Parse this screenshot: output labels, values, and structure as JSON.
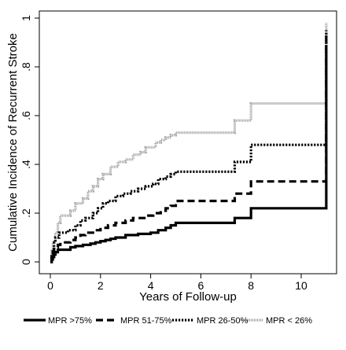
{
  "chart_data": {
    "type": "line",
    "xlabel": "Years of Follow-up",
    "ylabel": "Cumulative Incidence of Recurrent Stroke",
    "xlim": [
      0,
      11.5
    ],
    "ylim": [
      0,
      1.0
    ],
    "x_ticks": [
      {
        "value": 0,
        "label": "0"
      },
      {
        "value": 2,
        "label": "2"
      },
      {
        "value": 4,
        "label": "4"
      },
      {
        "value": 6,
        "label": "6"
      },
      {
        "value": 8,
        "label": "8"
      },
      {
        "value": 10,
        "label": "10"
      }
    ],
    "y_ticks": [
      {
        "value": 0,
        "label": "0"
      },
      {
        "value": 0.2,
        "label": ".2"
      },
      {
        "value": 0.4,
        "label": ".4"
      },
      {
        "value": 0.6,
        "label": ".6"
      },
      {
        "value": 0.8,
        "label": ".8"
      },
      {
        "value": 1.0,
        "label": "1"
      }
    ],
    "grid": false,
    "legend_position": "bottom",
    "series": [
      {
        "name": "MPR >75%",
        "line_style": "solid",
        "color": "#000000",
        "points": [
          [
            0,
            0
          ],
          [
            0.05,
            0.01
          ],
          [
            0.1,
            0.02
          ],
          [
            0.15,
            0.03
          ],
          [
            0.2,
            0.04
          ],
          [
            0.3,
            0.05
          ],
          [
            0.8,
            0.06
          ],
          [
            1.0,
            0.065
          ],
          [
            1.3,
            0.07
          ],
          [
            1.6,
            0.075
          ],
          [
            1.8,
            0.08
          ],
          [
            2.0,
            0.085
          ],
          [
            2.2,
            0.09
          ],
          [
            2.4,
            0.095
          ],
          [
            2.6,
            0.1
          ],
          [
            3.0,
            0.11
          ],
          [
            3.5,
            0.115
          ],
          [
            4.0,
            0.12
          ],
          [
            4.3,
            0.13
          ],
          [
            4.6,
            0.14
          ],
          [
            4.8,
            0.15
          ],
          [
            5.0,
            0.16
          ],
          [
            7.35,
            0.18
          ],
          [
            8.0,
            0.22
          ],
          [
            11.0,
            0.22
          ],
          [
            11.0,
            0.89
          ]
        ]
      },
      {
        "name": "MPR 51-75%",
        "line_style": "dashed",
        "color": "#000000",
        "points": [
          [
            0,
            0
          ],
          [
            0.05,
            0.02
          ],
          [
            0.1,
            0.04
          ],
          [
            0.15,
            0.06
          ],
          [
            0.3,
            0.07
          ],
          [
            0.4,
            0.08
          ],
          [
            0.8,
            0.09
          ],
          [
            1.0,
            0.1
          ],
          [
            1.2,
            0.11
          ],
          [
            1.4,
            0.12
          ],
          [
            1.7,
            0.13
          ],
          [
            2.0,
            0.14
          ],
          [
            2.3,
            0.15
          ],
          [
            2.6,
            0.16
          ],
          [
            3.0,
            0.17
          ],
          [
            3.3,
            0.18
          ],
          [
            3.8,
            0.19
          ],
          [
            4.1,
            0.2
          ],
          [
            4.4,
            0.21
          ],
          [
            4.6,
            0.22
          ],
          [
            4.8,
            0.23
          ],
          [
            5.0,
            0.25
          ],
          [
            7.35,
            0.28
          ],
          [
            8.0,
            0.33
          ],
          [
            11.0,
            0.33
          ],
          [
            11.0,
            0.93
          ]
        ]
      },
      {
        "name": "MPR 26-50%",
        "line_style": "dotted",
        "color": "#000000",
        "points": [
          [
            0,
            0
          ],
          [
            0.05,
            0.03
          ],
          [
            0.1,
            0.05
          ],
          [
            0.15,
            0.08
          ],
          [
            0.2,
            0.1
          ],
          [
            0.35,
            0.12
          ],
          [
            0.7,
            0.13
          ],
          [
            1.0,
            0.15
          ],
          [
            1.2,
            0.17
          ],
          [
            1.4,
            0.18
          ],
          [
            1.7,
            0.2
          ],
          [
            1.9,
            0.22
          ],
          [
            2.1,
            0.24
          ],
          [
            2.3,
            0.25
          ],
          [
            2.6,
            0.27
          ],
          [
            2.9,
            0.28
          ],
          [
            3.2,
            0.29
          ],
          [
            3.5,
            0.3
          ],
          [
            3.8,
            0.31
          ],
          [
            4.1,
            0.32
          ],
          [
            4.3,
            0.34
          ],
          [
            4.6,
            0.35
          ],
          [
            4.8,
            0.36
          ],
          [
            5.0,
            0.37
          ],
          [
            7.35,
            0.41
          ],
          [
            8.0,
            0.48
          ],
          [
            11.0,
            0.48
          ],
          [
            11.0,
            0.95
          ]
        ]
      },
      {
        "name": "MPR < 26%",
        "line_style": "fine-dotted",
        "color": "#9a9a9a",
        "points": [
          [
            0,
            0
          ],
          [
            0.05,
            0.05
          ],
          [
            0.1,
            0.08
          ],
          [
            0.2,
            0.12
          ],
          [
            0.3,
            0.16
          ],
          [
            0.4,
            0.19
          ],
          [
            0.8,
            0.21
          ],
          [
            1.0,
            0.24
          ],
          [
            1.3,
            0.26
          ],
          [
            1.5,
            0.29
          ],
          [
            1.7,
            0.31
          ],
          [
            1.9,
            0.34
          ],
          [
            2.1,
            0.36
          ],
          [
            2.4,
            0.39
          ],
          [
            2.7,
            0.41
          ],
          [
            3.0,
            0.42
          ],
          [
            3.3,
            0.44
          ],
          [
            3.6,
            0.45
          ],
          [
            3.8,
            0.47
          ],
          [
            4.2,
            0.49
          ],
          [
            4.4,
            0.5
          ],
          [
            4.6,
            0.51
          ],
          [
            4.8,
            0.52
          ],
          [
            5.0,
            0.53
          ],
          [
            7.35,
            0.58
          ],
          [
            8.0,
            0.65
          ],
          [
            11.0,
            0.65
          ],
          [
            11.0,
            0.98
          ]
        ]
      }
    ]
  }
}
